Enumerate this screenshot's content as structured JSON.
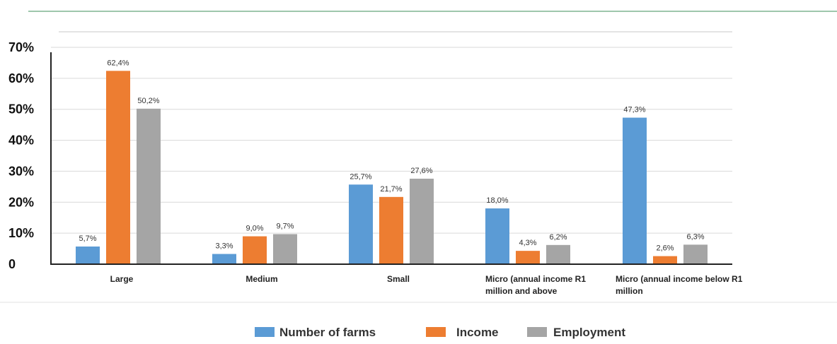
{
  "chart_data": {
    "type": "bar",
    "title": "",
    "xlabel": "",
    "ylabel": "",
    "ylim": [
      0,
      70
    ],
    "yticks": [
      "0",
      "10%",
      "20%",
      "30%",
      "40%",
      "50%",
      "60%",
      "70%"
    ],
    "ytick_values": [
      0,
      10,
      20,
      30,
      40,
      50,
      60,
      70
    ],
    "grid": true,
    "legend_position": "bottom",
    "categories": [
      [
        "Large"
      ],
      [
        "Medium"
      ],
      [
        "Small"
      ],
      [
        "Micro (annual income R1",
        "million and above"
      ],
      [
        "Micro (annual income below  R1",
        "million"
      ]
    ],
    "series": [
      {
        "name": "Number of farms",
        "color": "#5B9BD5",
        "values": [
          5.7,
          3.3,
          25.7,
          18.0,
          47.3
        ],
        "labels": [
          "5,7%",
          "3,3%",
          "25,7%",
          "18,0%",
          "47,3%"
        ]
      },
      {
        "name": "Income",
        "color": "#ED7D31",
        "values": [
          62.4,
          9.0,
          21.7,
          4.3,
          2.6
        ],
        "labels": [
          "62,4%",
          "9,0%",
          "21,7%",
          "4,3%",
          "2,6%"
        ]
      },
      {
        "name": "Employment",
        "color": "#A5A5A5",
        "values": [
          50.2,
          9.7,
          27.6,
          6.2,
          6.3
        ],
        "labels": [
          "50,2%",
          "9,7%",
          "27,6%",
          "6,2%",
          "6,3%"
        ]
      }
    ]
  }
}
